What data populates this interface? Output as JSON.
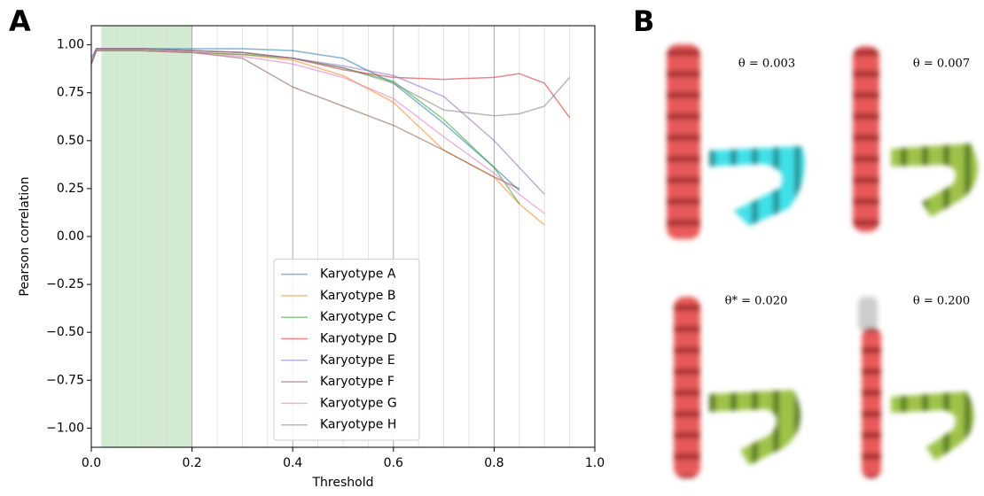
{
  "panel_labels": [
    "A",
    "B"
  ],
  "chart_data": {
    "type": "line",
    "xlabel": "Threshold",
    "ylabel": "Pearson correlation",
    "x": [
      0,
      0.01,
      0.1,
      0.2,
      0.3,
      0.4,
      0.5,
      0.6,
      0.7,
      0.8,
      0.85,
      0.9,
      0.95
    ],
    "series": [
      {
        "name": "Karyotype A",
        "color": "#1f77b4",
        "values": [
          0.93,
          0.98,
          0.98,
          0.98,
          0.98,
          0.97,
          0.93,
          0.8,
          0.59,
          0.36,
          0.24,
          null,
          null
        ]
      },
      {
        "name": "Karyotype B",
        "color": "#ff7f0e",
        "values": [
          0.9,
          0.97,
          0.97,
          0.96,
          0.95,
          0.92,
          0.84,
          0.7,
          0.45,
          0.31,
          0.17,
          0.06,
          null
        ]
      },
      {
        "name": "Karyotype C",
        "color": "#2ca02c",
        "values": [
          0.9,
          0.97,
          0.97,
          0.96,
          0.95,
          0.93,
          0.88,
          0.81,
          0.61,
          0.36,
          0.17,
          null,
          null
        ]
      },
      {
        "name": "Karyotype D",
        "color": "#d62728",
        "values": [
          0.9,
          0.98,
          0.98,
          0.97,
          0.96,
          0.93,
          0.87,
          0.83,
          0.82,
          0.83,
          0.85,
          0.8,
          0.62
        ]
      },
      {
        "name": "Karyotype E",
        "color": "#9467bd",
        "values": [
          0.9,
          0.98,
          0.98,
          0.97,
          0.96,
          0.93,
          0.89,
          0.84,
          0.73,
          0.5,
          0.36,
          0.22,
          null
        ]
      },
      {
        "name": "Karyotype F",
        "color": "#8c564b",
        "values": [
          0.9,
          0.97,
          0.97,
          0.96,
          0.93,
          0.78,
          0.68,
          0.58,
          0.45,
          0.31,
          0.25,
          null,
          null
        ]
      },
      {
        "name": "Karyotype G",
        "color": "#e377c2",
        "values": [
          0.9,
          0.97,
          0.97,
          0.96,
          0.94,
          0.9,
          0.83,
          0.72,
          0.52,
          0.33,
          0.22,
          0.12,
          null
        ]
      },
      {
        "name": "Karyotype H",
        "color": "#7f7f7f",
        "values": [
          0.9,
          0.98,
          0.98,
          0.97,
          0.96,
          0.93,
          0.88,
          0.8,
          0.66,
          0.63,
          0.64,
          0.68,
          0.83
        ]
      }
    ],
    "xlim": [
      0,
      1
    ],
    "ylim": [
      -1.1,
      1.1
    ],
    "xticks": [
      {
        "value": 0,
        "label": "0.0"
      },
      {
        "value": 0.2,
        "label": "0.2"
      },
      {
        "value": 0.4,
        "label": "0.4"
      },
      {
        "value": 0.6,
        "label": "0.6"
      },
      {
        "value": 0.8,
        "label": "0.8"
      },
      {
        "value": 1,
        "label": "1.0"
      }
    ],
    "yticks": [
      {
        "value": 1,
        "label": "1.00"
      },
      {
        "value": 0.75,
        "label": "0.75"
      },
      {
        "value": 0.5,
        "label": "0.50"
      },
      {
        "value": 0.25,
        "label": "0.25"
      },
      {
        "value": 0,
        "label": "0.00"
      },
      {
        "value": -0.25,
        "label": "−0.25"
      },
      {
        "value": -0.5,
        "label": "−0.50"
      },
      {
        "value": -0.75,
        "label": "−0.75"
      },
      {
        "value": -1,
        "label": "−1.00"
      }
    ],
    "minor_grid_x": [
      0.05,
      0.1,
      0.15,
      0.25,
      0.3,
      0.35,
      0.45,
      0.5,
      0.55,
      0.65,
      0.7,
      0.75,
      0.85,
      0.9,
      0.95
    ],
    "highlight_span": [
      0.02,
      0.2
    ],
    "highlight_color": "#2ca02c",
    "grid": true,
    "legend": "lower center"
  },
  "panel_b": {
    "labels": [
      "θ = 0.003",
      "θ = 0.007",
      "θ* = 0.020",
      "θ = 0.200"
    ]
  }
}
